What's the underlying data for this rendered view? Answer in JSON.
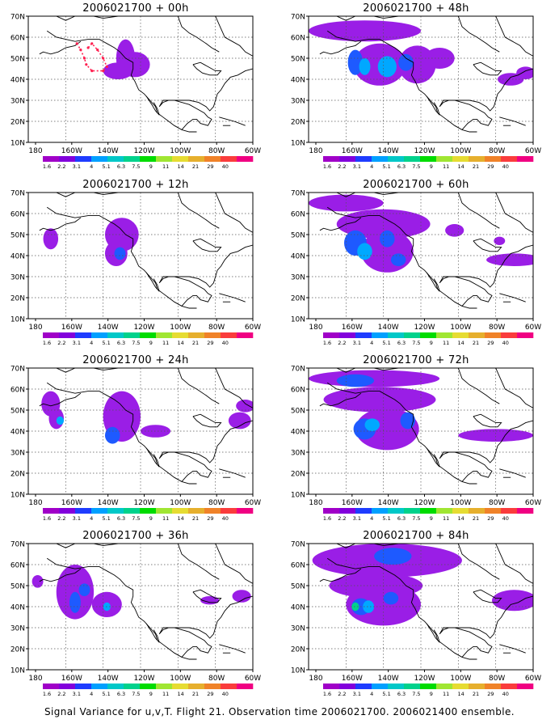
{
  "panels": [
    {
      "title": "2006021700 + 00h",
      "lead_hours": 0
    },
    {
      "title": "2006021700 + 48h",
      "lead_hours": 48
    },
    {
      "title": "2006021700 + 12h",
      "lead_hours": 12
    },
    {
      "title": "2006021700 + 60h",
      "lead_hours": 60
    },
    {
      "title": "2006021700 + 24h",
      "lead_hours": 24
    },
    {
      "title": "2006021700 + 72h",
      "lead_hours": 72
    },
    {
      "title": "2006021700 + 36h",
      "lead_hours": 36
    },
    {
      "title": "2006021700 + 84h",
      "lead_hours": 84
    }
  ],
  "lat_labels": [
    "70N",
    "60N",
    "50N",
    "40N",
    "30N",
    "20N",
    "10N"
  ],
  "lon_labels": [
    "180",
    "160W",
    "140W",
    "120W",
    "100W",
    "80W",
    "60W"
  ],
  "colorbar": {
    "labels": [
      "1.6",
      "2.2",
      "3.1",
      "4",
      "5.1",
      "6.3",
      "7.5",
      "9",
      "11",
      "14",
      "21",
      "29",
      "40"
    ],
    "colors": [
      "#a000c8",
      "#8200dc",
      "#1e3cff",
      "#00a0ff",
      "#00c8c8",
      "#00d28c",
      "#00dc00",
      "#a0e632",
      "#e6dc32",
      "#e6af2d",
      "#f08228",
      "#fa3c3c",
      "#f00082"
    ]
  },
  "footer": "Signal Variance for u,v,T. Flight 21. Observation time 2006021700. 2006021400 ensemble."
}
